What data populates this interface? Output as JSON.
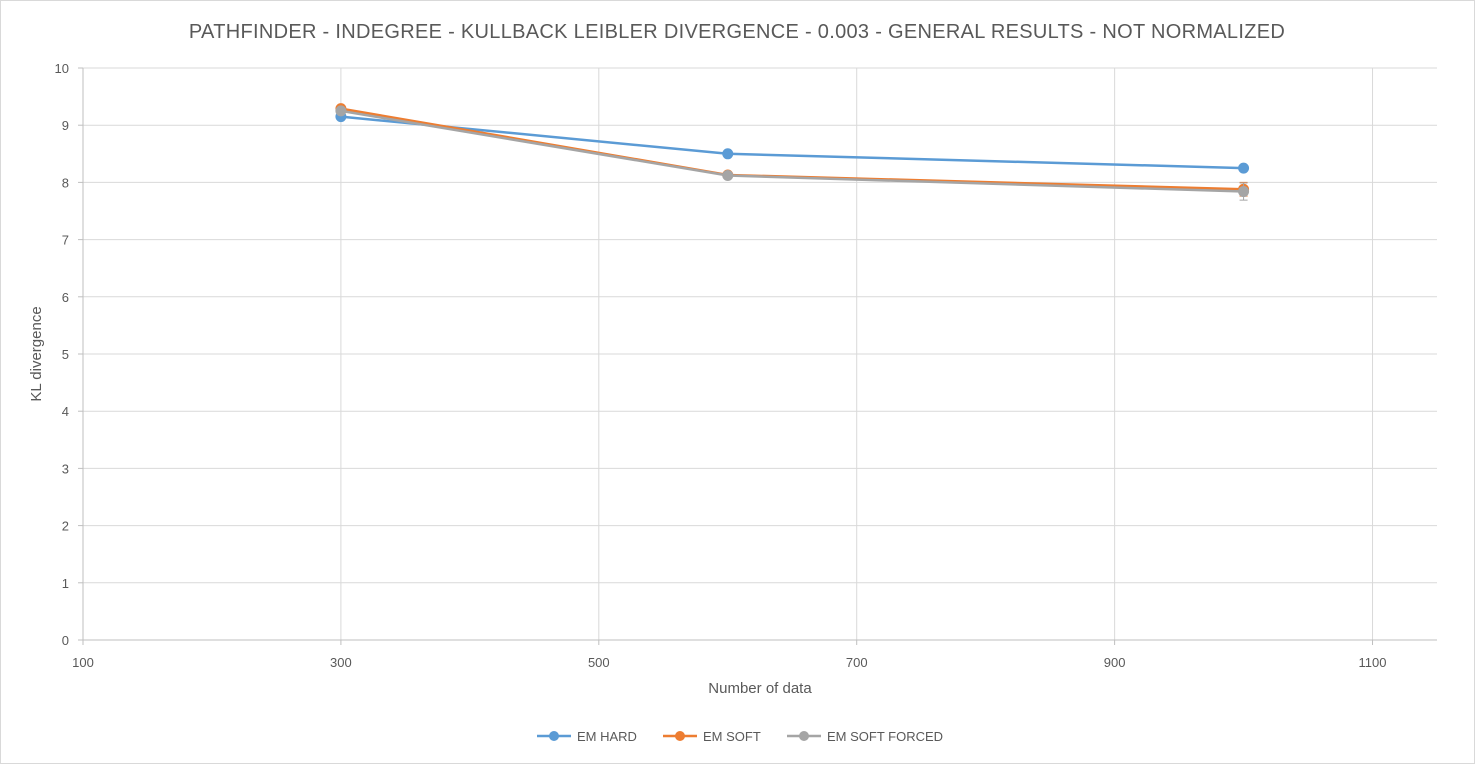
{
  "chart_data": {
    "type": "line",
    "title": "PATHFINDER - INDEGREE  - KULLBACK LEIBLER DIVERGENCE - 0.003 - GENERAL RESULTS - NOT NORMALIZED",
    "xlabel": "Number of data",
    "ylabel": "KL divergence",
    "xlim": [
      100,
      1150
    ],
    "ylim": [
      0,
      10
    ],
    "xticks": [
      100,
      300,
      500,
      700,
      900,
      1100
    ],
    "yticks": [
      0,
      1,
      2,
      3,
      4,
      5,
      6,
      7,
      8,
      9,
      10
    ],
    "grid": true,
    "legend_position": "bottom",
    "series": [
      {
        "name": "EM HARD",
        "color": "#5b9bd5",
        "x": [
          300,
          600,
          1000
        ],
        "y": [
          9.15,
          8.5,
          8.25
        ],
        "err": [
          0.03,
          0.03,
          0.03
        ]
      },
      {
        "name": "EM SOFT",
        "color": "#ed7d31",
        "x": [
          300,
          600,
          1000
        ],
        "y": [
          9.29,
          8.13,
          7.88
        ],
        "err": [
          0.03,
          0.03,
          0.12
        ]
      },
      {
        "name": "EM SOFT FORCED",
        "color": "#a5a5a5",
        "x": [
          300,
          600,
          1000
        ],
        "y": [
          9.25,
          8.12,
          7.84
        ],
        "err": [
          0.03,
          0.03,
          0.15
        ]
      }
    ]
  }
}
